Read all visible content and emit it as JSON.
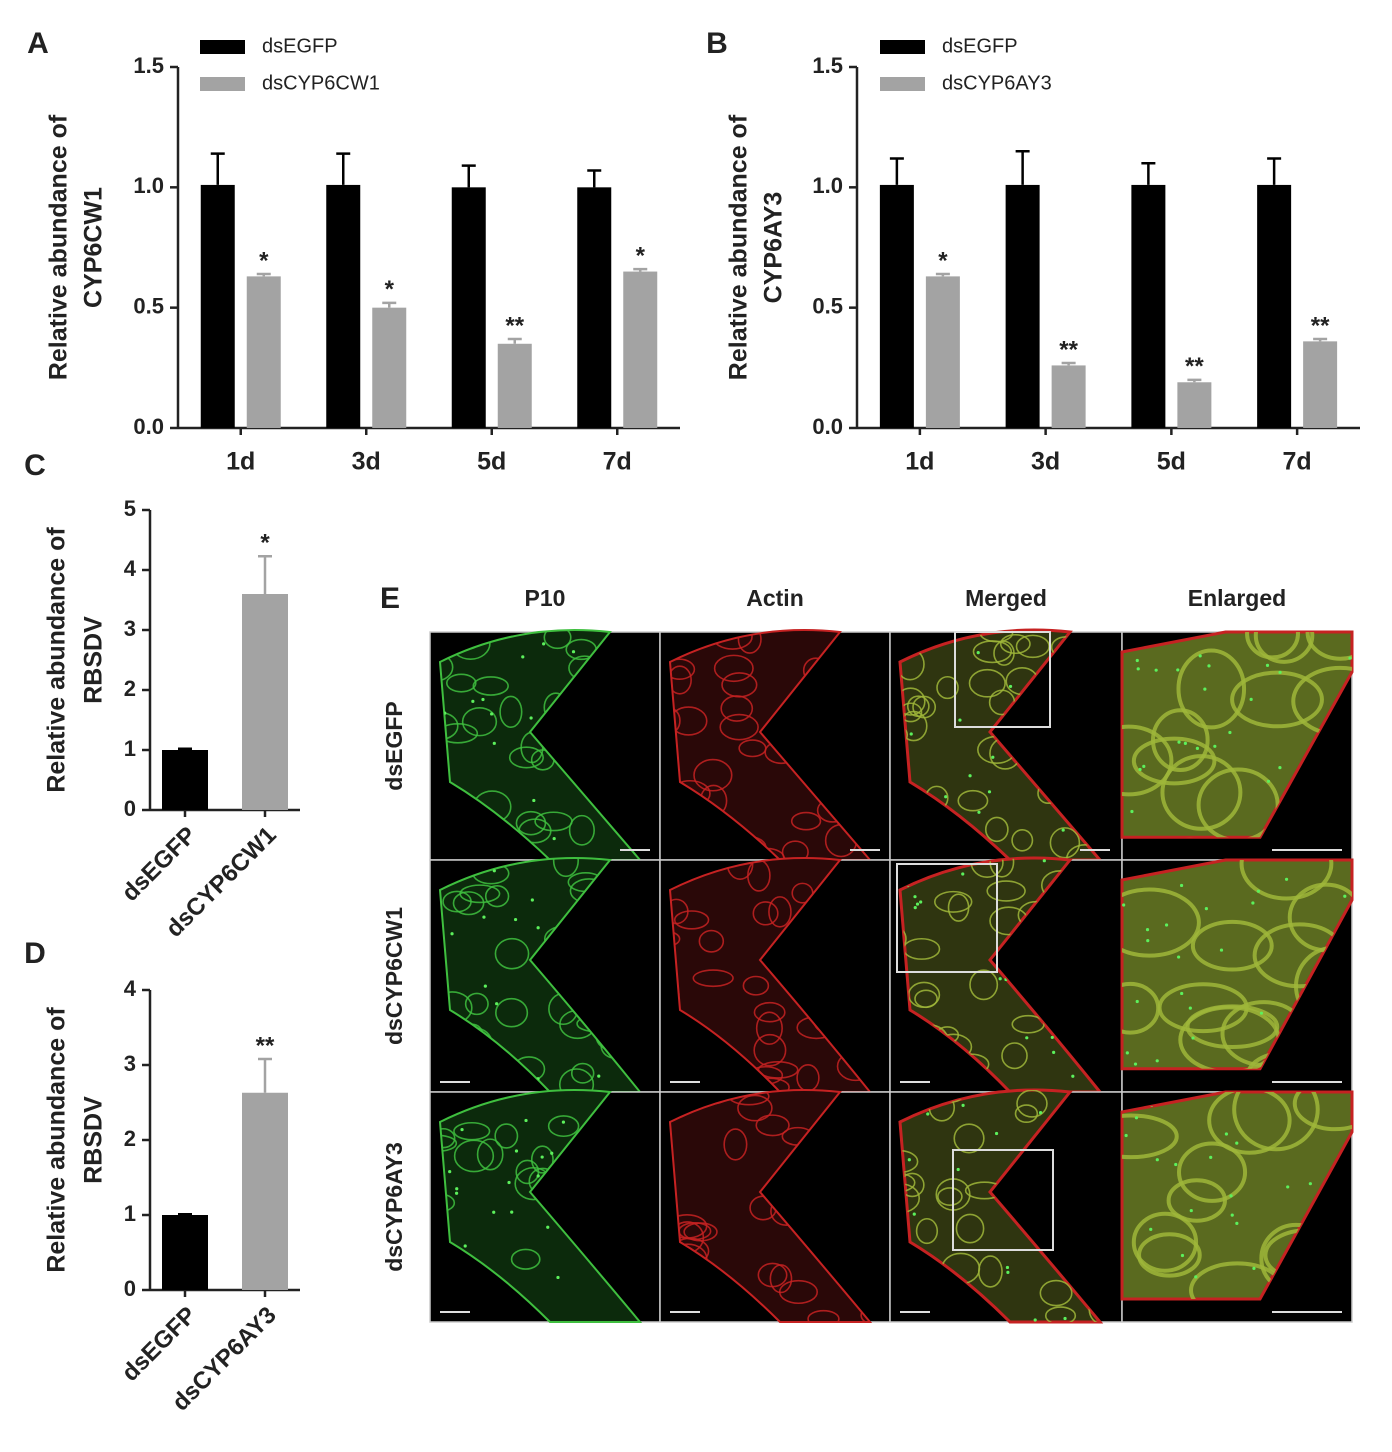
{
  "chart_data": [
    {
      "type": "bar",
      "panel": "A",
      "ylabel": [
        "Relative abundance of",
        "CYP6CW1"
      ],
      "categories": [
        "1d",
        "3d",
        "5d",
        "7d"
      ],
      "series": [
        {
          "name": "dsEGFP",
          "color": "#000000",
          "values": [
            1.01,
            1.01,
            1.0,
            1.0
          ],
          "errors": [
            0.13,
            0.13,
            0.09,
            0.07
          ]
        },
        {
          "name": "dsCYP6CW1",
          "color": "#a3a3a3",
          "values": [
            0.63,
            0.5,
            0.35,
            0.65
          ],
          "errors": [
            0.01,
            0.02,
            0.02,
            0.01
          ],
          "significance": [
            "*",
            "*",
            "**",
            "*"
          ]
        }
      ],
      "ylim": [
        0,
        1.5
      ],
      "yticks": [
        {
          "value": 0,
          "label": "0.0"
        },
        0.5,
        {
          "value": 1,
          "label": "1.0"
        },
        1.5
      ]
    },
    {
      "type": "bar",
      "panel": "B",
      "ylabel": [
        "Relative abundance of",
        "CYP6AY3"
      ],
      "categories": [
        "1d",
        "3d",
        "5d",
        "7d"
      ],
      "series": [
        {
          "name": "dsEGFP",
          "color": "#000000",
          "values": [
            1.01,
            1.01,
            1.01,
            1.01
          ],
          "errors": [
            0.11,
            0.14,
            0.09,
            0.11
          ]
        },
        {
          "name": "dsCYP6AY3",
          "color": "#a3a3a3",
          "values": [
            0.63,
            0.26,
            0.19,
            0.36
          ],
          "errors": [
            0.01,
            0.01,
            0.01,
            0.01
          ],
          "significance": [
            "*",
            "**",
            "**",
            "**"
          ]
        }
      ],
      "ylim": [
        0,
        1.5
      ],
      "yticks": [
        {
          "value": 0,
          "label": "0.0"
        },
        0.5,
        {
          "value": 1,
          "label": "1.0"
        },
        1.5
      ]
    },
    {
      "type": "bar",
      "panel": "C",
      "ylabel": [
        "Relative abundance of",
        "RBSDV"
      ],
      "categories": [
        "dsEGFP",
        "dsCYP6CW1"
      ],
      "values": [
        1.0,
        3.6
      ],
      "errors": [
        0.02,
        0.63
      ],
      "colors": [
        "#000000",
        "#a3a3a3"
      ],
      "significance": [
        null,
        "*"
      ],
      "ylim": [
        0,
        5
      ],
      "yticks": [
        0,
        1,
        2,
        3,
        4,
        5
      ]
    },
    {
      "type": "bar",
      "panel": "D",
      "ylabel": [
        "Relative abundance of",
        "RBSDV"
      ],
      "categories": [
        "dsEGFP",
        "dsCYP6AY3"
      ],
      "values": [
        1.0,
        2.63
      ],
      "errors": [
        0.01,
        0.45
      ],
      "colors": [
        "#000000",
        "#a3a3a3"
      ],
      "significance": [
        null,
        "**"
      ],
      "ylim": [
        0,
        4
      ],
      "yticks": [
        0,
        1,
        2,
        3,
        4
      ]
    }
  ],
  "microscopy": {
    "panel": "E",
    "columns": [
      "P10",
      "Actin",
      "Merged",
      "Enlarged"
    ],
    "rows": [
      "dsEGFP",
      "dsCYP6CW1",
      "dsCYP6AY3"
    ]
  }
}
